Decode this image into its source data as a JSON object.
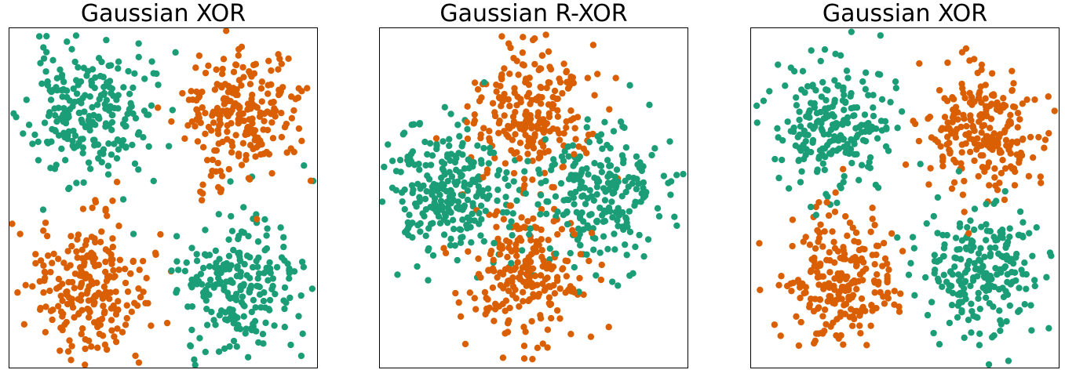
{
  "colors": {
    "class_0": "#1b9e77",
    "class_1": "#d95f02"
  },
  "chart_data": [
    {
      "type": "scatter",
      "title": "Gaussian XOR",
      "xlim": [
        -2,
        2
      ],
      "ylim": [
        -2,
        2
      ],
      "grid": false,
      "axis_ticks": false,
      "series": [
        {
          "label": "0",
          "color": "#1b9e77",
          "clusters": [
            {
              "cx": -1.0,
              "cy": 1.0,
              "n": 240
            },
            {
              "cx": 1.0,
              "cy": -1.0,
              "n": 240
            }
          ]
        },
        {
          "label": "1",
          "color": "#d95f02",
          "clusters": [
            {
              "cx": 1.0,
              "cy": 1.0,
              "n": 240
            },
            {
              "cx": -1.0,
              "cy": -1.0,
              "n": 240
            }
          ]
        }
      ],
      "spread_sd": 0.4,
      "seed": 11
    },
    {
      "type": "scatter",
      "title": "Gaussian R-XOR",
      "xlim": [
        -2,
        2
      ],
      "ylim": [
        -2,
        2
      ],
      "grid": false,
      "axis_ticks": false,
      "series": [
        {
          "label": "0",
          "color": "#1b9e77",
          "clusters": [
            {
              "cx": -1.15,
              "cy": 0.05,
              "n": 260
            },
            {
              "cx": 0.8,
              "cy": 0.0,
              "n": 240
            }
          ]
        },
        {
          "label": "1",
          "color": "#d95f02",
          "clusters": [
            {
              "cx": -0.05,
              "cy": 1.0,
              "n": 230
            },
            {
              "cx": -0.1,
              "cy": -0.9,
              "n": 230
            }
          ]
        }
      ],
      "spread_sd": 0.4,
      "seed": 23
    },
    {
      "type": "scatter",
      "title": "Gaussian XOR",
      "xlim": [
        -2,
        2
      ],
      "ylim": [
        -2,
        2
      ],
      "grid": false,
      "axis_ticks": false,
      "series": [
        {
          "label": "0",
          "color": "#1b9e77",
          "clusters": [
            {
              "cx": -0.9,
              "cy": 0.85,
              "n": 230
            },
            {
              "cx": 1.0,
              "cy": -0.85,
              "n": 230
            }
          ]
        },
        {
          "label": "1",
          "color": "#d95f02",
          "clusters": [
            {
              "cx": 1.0,
              "cy": 0.8,
              "n": 230
            },
            {
              "cx": -0.9,
              "cy": -0.95,
              "n": 230
            }
          ]
        }
      ],
      "spread_sd": 0.38,
      "seed": 37
    }
  ]
}
